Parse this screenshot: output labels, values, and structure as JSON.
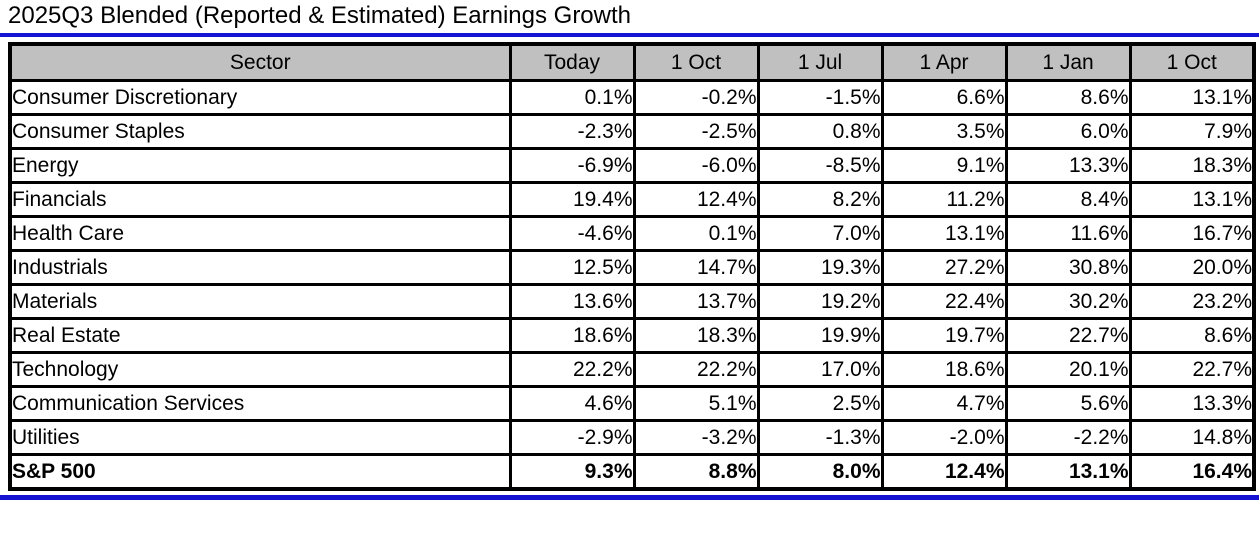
{
  "title": "2025Q3 Blended (Reported & Estimated) Earnings Growth",
  "colors": {
    "accent_blue": "#1414d2",
    "header_gray": "#c0c0c0",
    "border_black": "#000000"
  },
  "chart_data": {
    "type": "table",
    "title": "2025Q3 Blended (Reported & Estimated) Earnings Growth",
    "columns": [
      "Sector",
      "Today",
      "1 Oct",
      "1 Jul",
      "1 Apr",
      "1 Jan",
      "1 Oct"
    ],
    "rows": [
      {
        "sector": "Consumer Discretionary",
        "values": [
          "0.1%",
          "-0.2%",
          "-1.5%",
          "6.6%",
          "8.6%",
          "13.1%"
        ],
        "bold": false
      },
      {
        "sector": "Consumer Staples",
        "values": [
          "-2.3%",
          "-2.5%",
          "0.8%",
          "3.5%",
          "6.0%",
          "7.9%"
        ],
        "bold": false
      },
      {
        "sector": "Energy",
        "values": [
          "-6.9%",
          "-6.0%",
          "-8.5%",
          "9.1%",
          "13.3%",
          "18.3%"
        ],
        "bold": false
      },
      {
        "sector": "Financials",
        "values": [
          "19.4%",
          "12.4%",
          "8.2%",
          "11.2%",
          "8.4%",
          "13.1%"
        ],
        "bold": false
      },
      {
        "sector": "Health Care",
        "values": [
          "-4.6%",
          "0.1%",
          "7.0%",
          "13.1%",
          "11.6%",
          "16.7%"
        ],
        "bold": false
      },
      {
        "sector": "Industrials",
        "values": [
          "12.5%",
          "14.7%",
          "19.3%",
          "27.2%",
          "30.8%",
          "20.0%"
        ],
        "bold": false
      },
      {
        "sector": "Materials",
        "values": [
          "13.6%",
          "13.7%",
          "19.2%",
          "22.4%",
          "30.2%",
          "23.2%"
        ],
        "bold": false
      },
      {
        "sector": "Real Estate",
        "values": [
          "18.6%",
          "18.3%",
          "19.9%",
          "19.7%",
          "22.7%",
          "8.6%"
        ],
        "bold": false
      },
      {
        "sector": "Technology",
        "values": [
          "22.2%",
          "22.2%",
          "17.0%",
          "18.6%",
          "20.1%",
          "22.7%"
        ],
        "bold": false
      },
      {
        "sector": "Communication Services",
        "values": [
          "4.6%",
          "5.1%",
          "2.5%",
          "4.7%",
          "5.6%",
          "13.3%"
        ],
        "bold": false
      },
      {
        "sector": "Utilities",
        "values": [
          "-2.9%",
          "-3.2%",
          "-1.3%",
          "-2.0%",
          "-2.2%",
          "14.8%"
        ],
        "bold": false
      },
      {
        "sector": "S&P 500",
        "values": [
          "9.3%",
          "8.8%",
          "8.0%",
          "12.4%",
          "13.1%",
          "16.4%"
        ],
        "bold": true
      }
    ]
  }
}
